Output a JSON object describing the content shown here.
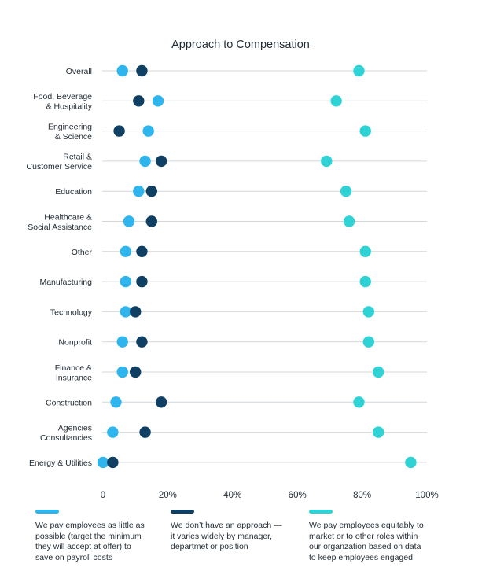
{
  "chart_data": {
    "type": "scatter",
    "title": "Approach to Compensation",
    "xlim": [
      0,
      100
    ],
    "x_ticks": [
      "0",
      "20%",
      "40%",
      "60%",
      "80%",
      "100%"
    ],
    "x_tick_values": [
      0,
      20,
      40,
      60,
      80,
      100
    ],
    "categories": [
      [
        "Overall"
      ],
      [
        "Food, Beverage",
        "& Hospitality"
      ],
      [
        "Engineering",
        "& Science"
      ],
      [
        "Retail &",
        "Customer Service"
      ],
      [
        "Education"
      ],
      [
        "Healthcare &",
        "Social Assistance"
      ],
      [
        "Other"
      ],
      [
        "Manufacturing"
      ],
      [
        "Technology"
      ],
      [
        "Nonprofit"
      ],
      [
        "Finance &",
        "Insurance"
      ],
      [
        "Construction"
      ],
      [
        "Agencies",
        "Consultancies"
      ],
      [
        "Energy & Utilities"
      ]
    ],
    "series": [
      {
        "name": "We pay employees as little as possible (target the minimum they will accept at offer) to save on payroll costs",
        "legend_lines": [
          "We pay employees as little as",
          "possible (target the minimum",
          "they will accept at offer) to",
          "save on payroll costs"
        ],
        "color": "#2EB5EE",
        "values": [
          6,
          17,
          14,
          13,
          11,
          8,
          7,
          7,
          7,
          6,
          6,
          4,
          3,
          0
        ]
      },
      {
        "name": "We don't have an approach — it varies widely by manager, departmet or position",
        "legend_lines": [
          "We don’t have an approach —",
          "it varies widely by manager,",
          "departmet or position"
        ],
        "color": "#0F3F62",
        "values": [
          12,
          11,
          5,
          18,
          15,
          15,
          12,
          12,
          10,
          12,
          10,
          18,
          13,
          3
        ]
      },
      {
        "name": "We pay employees equitably to market or to other roles within our organzation based on data to keep employees engaged",
        "legend_lines": [
          "We pay employees equitably to",
          "market or to other roles within",
          "our organzation based on data",
          "to keep employees engaged"
        ],
        "color": "#2FD3D6",
        "values": [
          79,
          72,
          81,
          69,
          75,
          76,
          81,
          81,
          82,
          82,
          85,
          79,
          85,
          95
        ]
      }
    ],
    "grid": true,
    "legend_position": "bottom"
  }
}
